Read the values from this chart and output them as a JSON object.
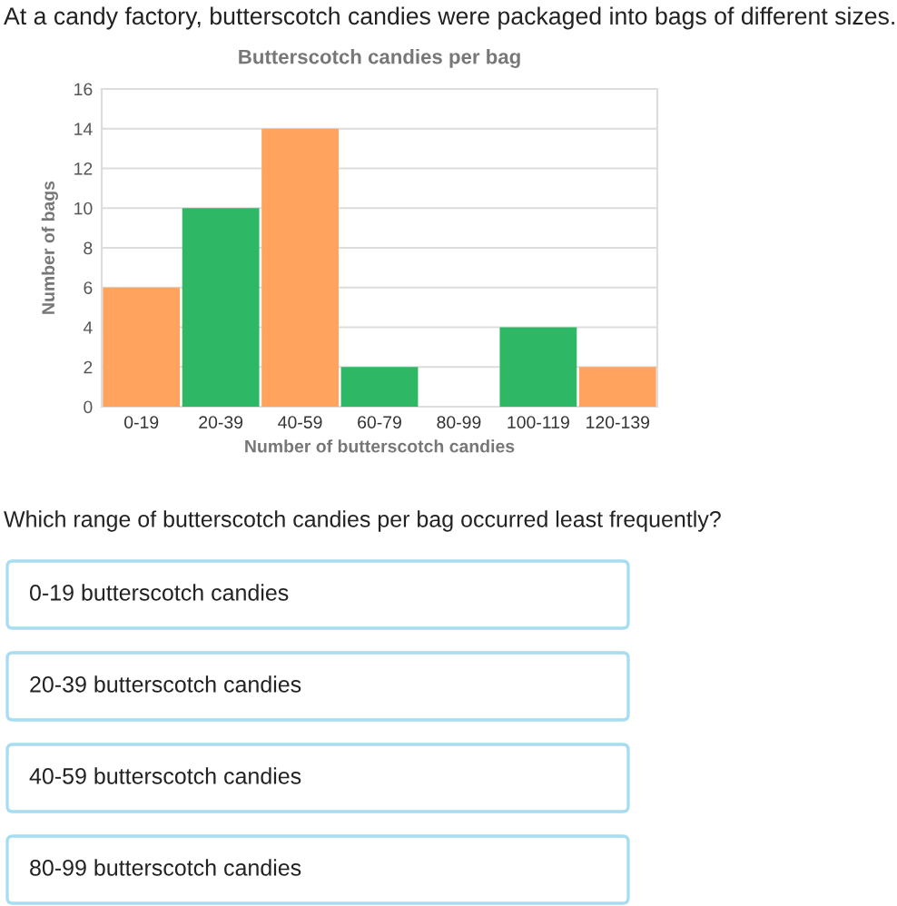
{
  "chart_data": {
    "type": "bar",
    "title": "Butterscotch candies per bag",
    "subtitle": "At a candy factory, butterscotch candies were packaged into bags of different sizes.",
    "xlabel": "Number of butterscotch candies",
    "ylabel": "Number of bags",
    "categories": [
      "0-19",
      "20-39",
      "40-59",
      "60-79",
      "80-99",
      "100-119",
      "120-139"
    ],
    "values": [
      6,
      10,
      14,
      2,
      0,
      4,
      2
    ],
    "colors": [
      "#ffa35f",
      "#2eb865",
      "#ffa35f",
      "#2eb865",
      "#ffa35f",
      "#2eb865",
      "#ffa35f"
    ],
    "ylim": [
      0,
      16
    ],
    "yticks": [
      0,
      2,
      4,
      6,
      8,
      10,
      12,
      14,
      16
    ],
    "grid": "y",
    "annotations": [
      "Which range of butterscotch candies per bag occurred least frequently?",
      "0-19 butterscotch candies",
      "20-39 butterscotch candies",
      "40-59 butterscotch candies",
      "80-99 butterscotch candies"
    ]
  }
}
